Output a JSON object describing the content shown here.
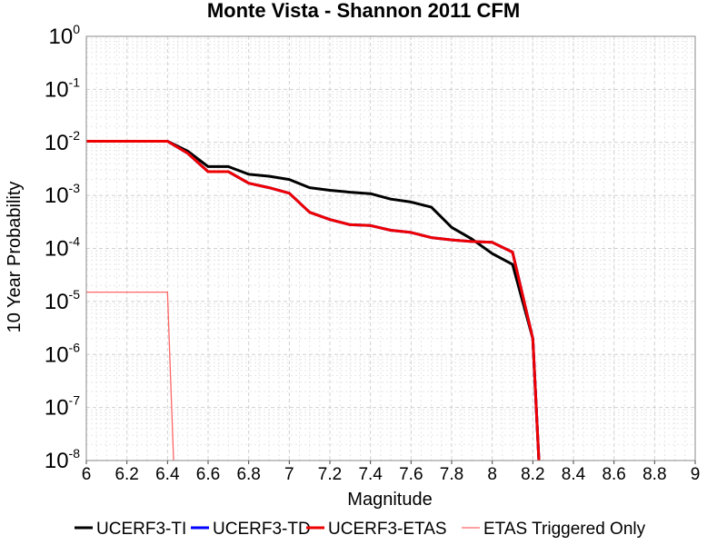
{
  "chart_data": {
    "type": "line",
    "title": "Monte Vista - Shannon 2011 CFM",
    "xlabel": "Magnitude",
    "ylabel": "10 Year Probability",
    "xlim": [
      6,
      9
    ],
    "ylim": [
      1e-08,
      1
    ],
    "yscale": "log",
    "grid": true,
    "legend_position": "bottom",
    "x_ticks": [
      "6",
      "6.2",
      "6.4",
      "6.6",
      "6.8",
      "7",
      "7.2",
      "7.4",
      "7.6",
      "7.8",
      "8",
      "8.2",
      "8.4",
      "8.6",
      "8.8",
      "9"
    ],
    "y_ticks": [
      {
        "base": "10",
        "exp": "0",
        "value": 1
      },
      {
        "base": "10",
        "exp": "-1",
        "value": 0.1
      },
      {
        "base": "10",
        "exp": "-2",
        "value": 0.01
      },
      {
        "base": "10",
        "exp": "-3",
        "value": 0.001
      },
      {
        "base": "10",
        "exp": "-4",
        "value": 0.0001
      },
      {
        "base": "10",
        "exp": "-5",
        "value": 1e-05
      },
      {
        "base": "10",
        "exp": "-6",
        "value": 1e-06
      },
      {
        "base": "10",
        "exp": "-7",
        "value": 1e-07
      },
      {
        "base": "10",
        "exp": "-8",
        "value": 1e-08
      }
    ],
    "series": [
      {
        "name": "UCERF3-TI",
        "color": "#000000",
        "width": 3,
        "x": [
          6.0,
          6.1,
          6.2,
          6.3,
          6.4,
          6.5,
          6.6,
          6.7,
          6.8,
          6.9,
          7.0,
          7.1,
          7.2,
          7.3,
          7.4,
          7.5,
          7.6,
          7.7,
          7.8,
          7.9,
          8.0,
          8.1,
          8.2,
          8.23
        ],
        "y": [
          0.0105,
          0.0105,
          0.0105,
          0.0105,
          0.0105,
          0.0068,
          0.0035,
          0.0035,
          0.0025,
          0.0023,
          0.002,
          0.0014,
          0.00125,
          0.00115,
          0.00108,
          0.00085,
          0.00075,
          0.0006,
          0.00025,
          0.00015,
          8e-05,
          5e-05,
          2e-06,
          1e-08
        ]
      },
      {
        "name": "UCERF3-TD",
        "color": "#0000ff",
        "width": 3,
        "x": [
          6.0,
          6.1,
          6.2,
          6.3,
          6.4,
          6.5,
          6.6,
          6.7,
          6.8,
          6.9,
          7.0,
          7.1,
          7.2,
          7.3,
          7.4,
          7.5,
          7.6,
          7.7,
          7.8,
          7.9,
          8.0,
          8.1,
          8.2,
          8.23
        ],
        "y": [
          0.0105,
          0.0105,
          0.0105,
          0.0105,
          0.0105,
          0.0062,
          0.0028,
          0.0028,
          0.0017,
          0.0014,
          0.0011,
          0.00048,
          0.00035,
          0.00028,
          0.00027,
          0.00022,
          0.0002,
          0.00016,
          0.000145,
          0.000135,
          0.00013,
          8.5e-05,
          2e-06,
          1e-08
        ]
      },
      {
        "name": "UCERF3-ETAS",
        "color": "#ee0000",
        "width": 3,
        "x": [
          6.0,
          6.1,
          6.2,
          6.3,
          6.4,
          6.5,
          6.6,
          6.7,
          6.8,
          6.9,
          7.0,
          7.1,
          7.2,
          7.3,
          7.4,
          7.5,
          7.6,
          7.7,
          7.8,
          7.9,
          8.0,
          8.1,
          8.2,
          8.23
        ],
        "y": [
          0.0105,
          0.0105,
          0.0105,
          0.0105,
          0.0105,
          0.0062,
          0.0028,
          0.0028,
          0.0017,
          0.0014,
          0.0011,
          0.00048,
          0.00035,
          0.00028,
          0.00027,
          0.00022,
          0.0002,
          0.00016,
          0.000145,
          0.000135,
          0.00013,
          8.5e-05,
          2e-06,
          1e-08
        ]
      },
      {
        "name": "ETAS Triggered Only",
        "color": "#ff6666",
        "width": 1.3,
        "x": [
          6.0,
          6.4,
          6.43
        ],
        "y": [
          1.5e-05,
          1.5e-05,
          1e-08
        ]
      }
    ]
  }
}
